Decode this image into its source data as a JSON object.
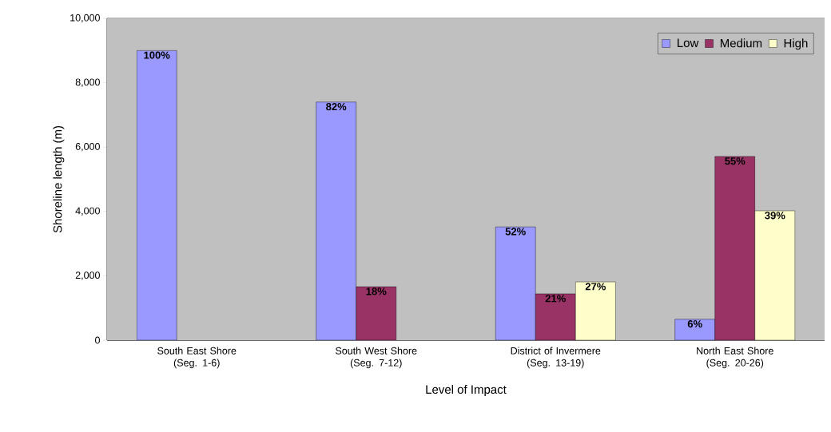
{
  "chart_data": {
    "type": "bar",
    "xlabel": "Level of Impact",
    "ylabel": "Shoreline length (m)",
    "categories": [
      "South East Shore (Seg. 1-6)",
      "South West Shore (Seg. 7-12)",
      "District of Invermere (Seg. 13-19)",
      "North East Shore (Seg. 20-26)"
    ],
    "series": [
      {
        "name": "Low",
        "color": "#9999ff",
        "values": [
          9000,
          7400,
          3520,
          650
        ]
      },
      {
        "name": "Medium",
        "color": "#993366",
        "values": [
          null,
          1660,
          1440,
          5710
        ]
      },
      {
        "name": "High",
        "color": "#ffffcc",
        "values": [
          null,
          null,
          1810,
          4020
        ]
      }
    ],
    "annotations": [
      "100%",
      "82%",
      "18%",
      "52%",
      "21%",
      "27%",
      "6%",
      "55%",
      "39%"
    ],
    "ylim": [
      0,
      10000
    ],
    "yticks": [
      0,
      {
        "value": 2000,
        "label": "2,000"
      },
      {
        "value": 4000,
        "label": "4,000"
      },
      {
        "value": 6000,
        "label": "6,000"
      },
      {
        "value": 8000,
        "label": "8,000"
      },
      {
        "value": 10000,
        "label": "10,000"
      }
    ],
    "grid": "y",
    "legend": "top right"
  }
}
